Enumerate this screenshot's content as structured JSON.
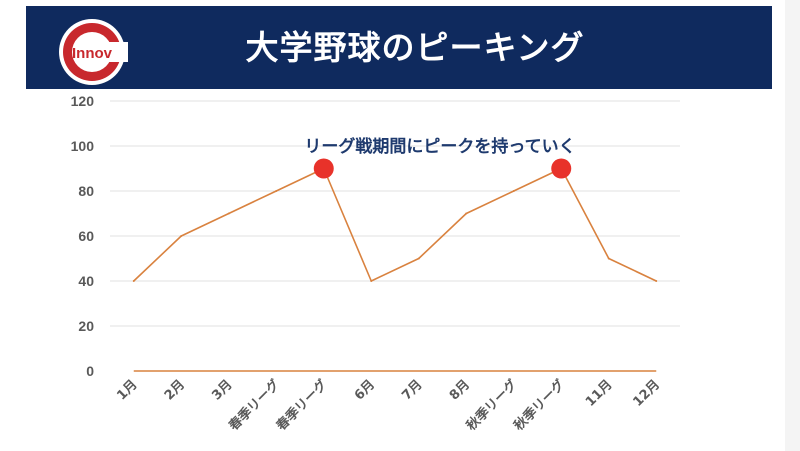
{
  "header": {
    "title": "大学野球のピーキング",
    "logo_text": "Innov"
  },
  "colors": {
    "header_bg": "#0f2a5e",
    "line": "#d9823f",
    "peak_marker": "#e8322a",
    "logo_red": "#c8282d"
  },
  "chart_data": {
    "type": "line",
    "categories": [
      "1月",
      "2月",
      "3月",
      "春季リーグ",
      "春季リーグ",
      "6月",
      "7月",
      "8月",
      "秋季リーグ",
      "秋季リーグ",
      "11月",
      "12月"
    ],
    "values": [
      40,
      60,
      70,
      80,
      90,
      40,
      50,
      70,
      80,
      90,
      50,
      40
    ],
    "baseline_values": [
      0,
      0,
      0,
      0,
      0,
      0,
      0,
      0,
      0,
      0,
      0,
      0
    ],
    "peak_indices": [
      4,
      9
    ],
    "y_ticks": [
      0,
      20,
      40,
      60,
      80,
      100,
      120
    ],
    "ylim": [
      0,
      120
    ],
    "grid": true,
    "annotation": "リーグ戦期間にピークを持っていく"
  }
}
